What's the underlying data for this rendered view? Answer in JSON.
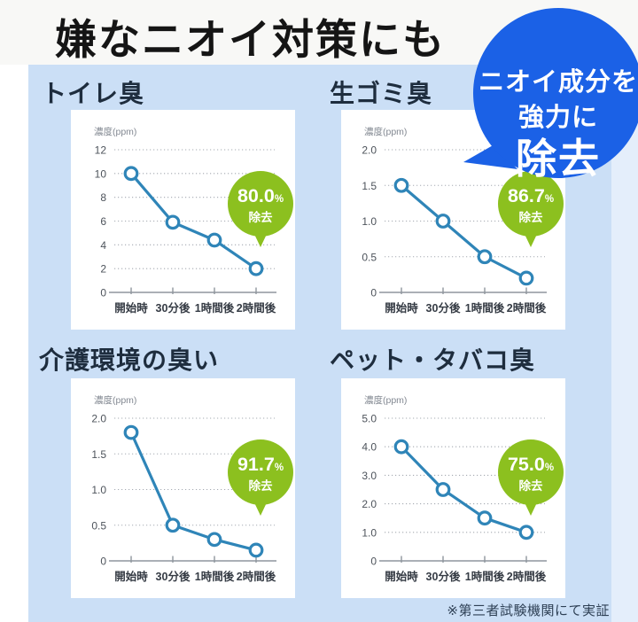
{
  "header": {
    "title": "嫌なニオイ対策にも"
  },
  "bubble": {
    "line1": "ニオイ成分を",
    "line2": "強力に",
    "line3": "除去"
  },
  "footnote": "※第三者試験機関にて実証",
  "colors": {
    "header_bg": "#f8f8f6",
    "background_blue": "#cbdff6",
    "background_light": "#e4eefb",
    "panel_white": "#ffffff",
    "line_blue": "#2f85b8",
    "badge_green": "#8cc01f",
    "bubble_blue": "#1b61e6",
    "title_navy": "#1e2d3e",
    "footnote_navy": "#2e4055",
    "axis_gray": "#8f959d",
    "grid_gray": "#a6abb2"
  },
  "chart_data": [
    {
      "type": "line",
      "title": "トイレ臭",
      "ylabel": "濃度(ppm)",
      "xlabel": "",
      "categories": [
        "開始時",
        "30分後",
        "1時間後",
        "2時間後"
      ],
      "values": [
        10,
        5.9,
        4.4,
        2.0
      ],
      "yticks": [
        0,
        2,
        4,
        6,
        8,
        10,
        12
      ],
      "ytick_labels": [
        "0",
        "2",
        "4",
        "6",
        "8",
        "10",
        "12"
      ],
      "ylim": [
        0,
        12
      ],
      "grid": "dotted-horizontal",
      "legend": "none",
      "badge": {
        "percent": "80.0",
        "unit": "%",
        "label": "除去"
      }
    },
    {
      "type": "line",
      "title": "生ゴミ臭",
      "ylabel": "濃度(ppm)",
      "xlabel": "",
      "categories": [
        "開始時",
        "30分後",
        "1時間後",
        "2時間後"
      ],
      "values": [
        1.5,
        1.0,
        0.5,
        0.2
      ],
      "yticks": [
        0,
        0.5,
        1.0,
        1.5,
        2.0
      ],
      "ytick_labels": [
        "0",
        "0.5",
        "1.0",
        "1.5",
        "2.0"
      ],
      "ylim": [
        0,
        2
      ],
      "grid": "dotted-horizontal",
      "legend": "none",
      "badge": {
        "percent": "86.7",
        "unit": "%",
        "label": "除去"
      }
    },
    {
      "type": "line",
      "title": "介護環境の臭い",
      "ylabel": "濃度(ppm)",
      "xlabel": "",
      "categories": [
        "開始時",
        "30分後",
        "1時間後",
        "2時間後"
      ],
      "values": [
        1.8,
        0.5,
        0.3,
        0.15
      ],
      "yticks": [
        0,
        0.5,
        1.0,
        1.5,
        2.0
      ],
      "ytick_labels": [
        "0",
        "0.5",
        "1.0",
        "1.5",
        "2.0"
      ],
      "ylim": [
        0,
        2
      ],
      "grid": "dotted-horizontal",
      "legend": "none",
      "badge": {
        "percent": "91.7",
        "unit": "%",
        "label": "除去"
      }
    },
    {
      "type": "line",
      "title": "ペット・タバコ臭",
      "ylabel": "濃度(ppm)",
      "xlabel": "",
      "categories": [
        "開始時",
        "30分後",
        "1時間後",
        "2時間後"
      ],
      "values": [
        4.0,
        2.5,
        1.5,
        1.0
      ],
      "yticks": [
        0,
        1.0,
        2.0,
        3.0,
        4.0,
        5.0
      ],
      "ytick_labels": [
        "0",
        "1.0",
        "2.0",
        "3.0",
        "4.0",
        "5.0"
      ],
      "ylim": [
        0,
        5
      ],
      "grid": "dotted-horizontal",
      "legend": "none",
      "badge": {
        "percent": "75.0",
        "unit": "%",
        "label": "除去"
      }
    }
  ]
}
